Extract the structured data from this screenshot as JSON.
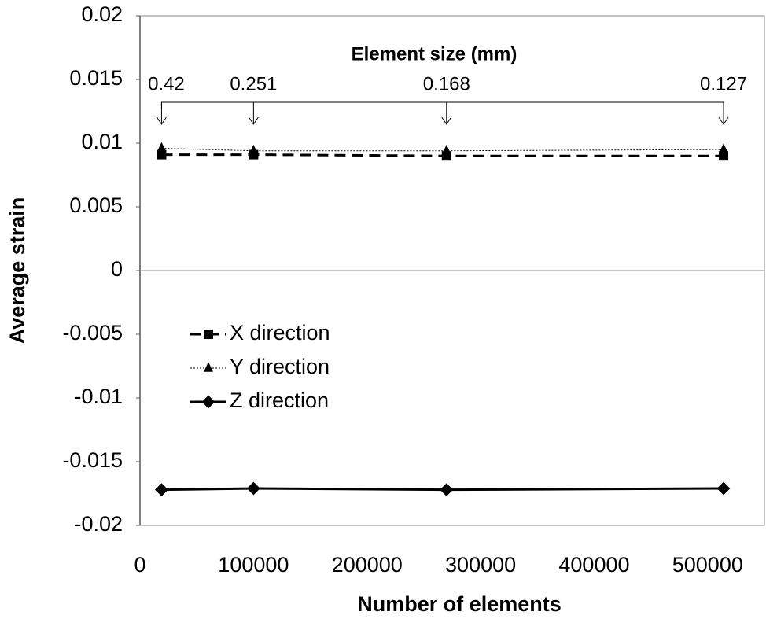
{
  "chart_data": {
    "type": "line",
    "x_label": "Number of elements",
    "y_label": "Average strain",
    "x": [
      19000,
      100000,
      270000,
      514000
    ],
    "series": [
      {
        "name": "X direction",
        "color": "#000000",
        "line_style": "dashed",
        "marker": "square",
        "values": [
          0.0091,
          0.0091,
          0.009,
          0.009
        ]
      },
      {
        "name": "Y direction",
        "color": "#000000",
        "line_style": "dotted",
        "marker": "triangle",
        "values": [
          0.0096,
          0.0094,
          0.0094,
          0.0095
        ]
      },
      {
        "name": "Z direction",
        "color": "#000000",
        "line_style": "solid",
        "marker": "diamond",
        "values": [
          -0.0172,
          -0.0171,
          -0.0172,
          -0.0171
        ]
      }
    ],
    "xlim": [
      0,
      550000
    ],
    "xticks": [
      0,
      100000,
      200000,
      300000,
      400000,
      500000
    ],
    "ylim": [
      -0.02,
      0.02
    ],
    "yticks": [
      -0.02,
      -0.015,
      -0.01,
      -0.005,
      0,
      0.005,
      0.01,
      0.015,
      0.02
    ],
    "grid": false,
    "legend": "left",
    "annotation": {
      "title": "Element size (mm)",
      "labels": [
        "0.42",
        "0.251",
        "0.168",
        "0.127"
      ]
    }
  }
}
